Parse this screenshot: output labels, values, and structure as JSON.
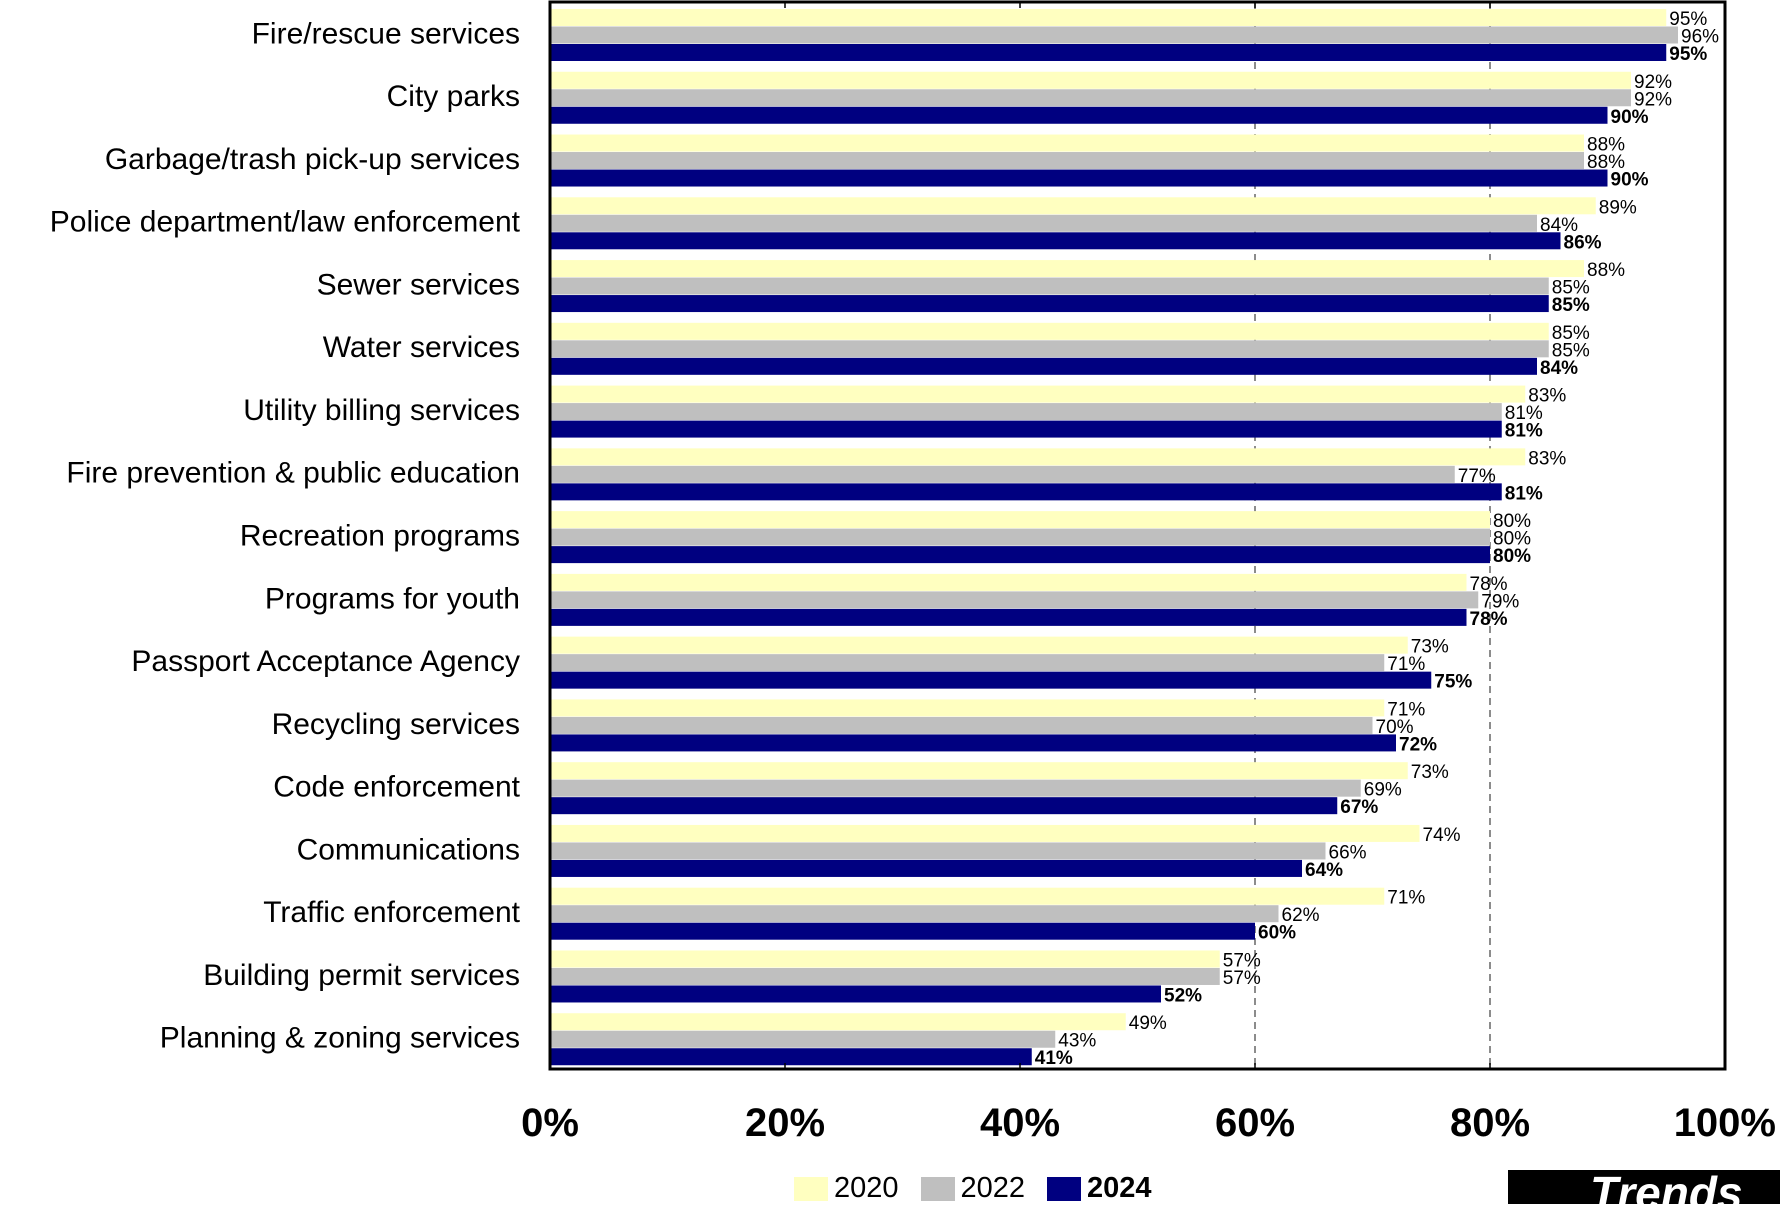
{
  "chart_data": {
    "type": "bar",
    "orientation": "horizontal",
    "categories": [
      "Fire/rescue services",
      "City parks",
      "Garbage/trash pick-up services",
      "Police department/law enforcement",
      "Sewer services",
      "Water services",
      "Utility billing services",
      "Fire prevention & public education",
      "Recreation programs",
      "Programs for youth",
      "Passport Acceptance Agency",
      "Recycling services",
      "Code enforcement",
      "Communications",
      "Traffic enforcement",
      "Building permit services",
      "Planning & zoning services"
    ],
    "series": [
      {
        "name": "2020",
        "color": "#FFFFC0",
        "label_bold": false,
        "values": [
          95,
          92,
          88,
          89,
          88,
          85,
          83,
          83,
          80,
          78,
          73,
          71,
          73,
          74,
          71,
          57,
          49
        ],
        "labels": [
          "95%",
          "92%",
          "88%",
          "89%",
          "88%",
          "85%",
          "83%",
          "83%",
          "80%",
          "78%",
          "73%",
          "71%",
          "73%",
          "74%",
          "71%",
          "57%",
          "49%"
        ]
      },
      {
        "name": "2022",
        "color": "#BFBFBF",
        "label_bold": false,
        "values": [
          96,
          92,
          88,
          84,
          85,
          85,
          81,
          77,
          80,
          79,
          71,
          70,
          69,
          66,
          62,
          57,
          43
        ],
        "labels": [
          "96%",
          "92%",
          "88%",
          "84%",
          "85%",
          "85%",
          "81%",
          "77%",
          "80%",
          "79%",
          "71%",
          "70%",
          "69%",
          "66%",
          "62%",
          "57%",
          "43%"
        ]
      },
      {
        "name": "2024",
        "color": "#000080",
        "label_bold": true,
        "values": [
          95,
          90,
          90,
          86,
          85,
          84,
          81,
          81,
          80,
          78,
          75,
          72,
          67,
          64,
          60,
          52,
          41
        ],
        "labels": [
          "95%",
          "90%",
          "90%",
          "86%",
          "85%",
          "84%",
          "81%",
          "81%",
          "80%",
          "78%",
          "75%",
          "72%",
          "67%",
          "64%",
          "60%",
          "52%",
          "41%"
        ]
      }
    ],
    "xlim": [
      0,
      100
    ],
    "x_ticks": [
      "0%",
      "20%",
      "40%",
      "60%",
      "80%",
      "100%"
    ],
    "reference_lines": [
      60,
      80
    ],
    "legend_position": "bottom"
  },
  "badge": {
    "text": "Trends"
  }
}
